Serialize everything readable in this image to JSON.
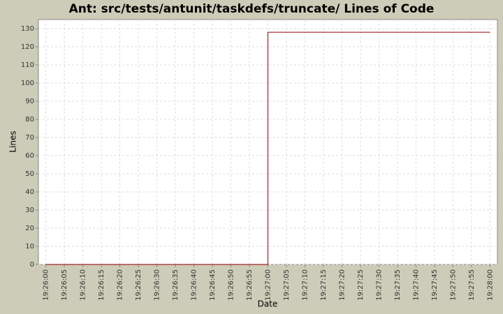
{
  "chart_data": {
    "type": "line",
    "title": "Ant: src/tests/antunit/taskdefs/truncate/ Lines of Code",
    "x_label": "Date",
    "y_label": "Lines",
    "x": [
      "19:26:00",
      "19:27:00",
      "19:27:00",
      "19:28:00"
    ],
    "values": [
      0,
      0,
      128,
      128
    ],
    "color": "#a02424",
    "xlim": [
      "19:25:58",
      "19:28:02"
    ],
    "xticks": [
      "19:26:00",
      "19:26:05",
      "19:26:10",
      "19:26:15",
      "19:26:20",
      "19:26:25",
      "19:26:30",
      "19:26:35",
      "19:26:40",
      "19:26:45",
      "19:26:50",
      "19:26:55",
      "19:27:00",
      "19:27:05",
      "19:27:10",
      "19:27:15",
      "19:27:20",
      "19:27:25",
      "19:27:30",
      "19:27:35",
      "19:27:40",
      "19:27:45",
      "19:27:50",
      "19:27:55",
      "19:28:00"
    ],
    "ylim": [
      0,
      135
    ],
    "yticks": [
      0,
      10,
      20,
      30,
      40,
      50,
      60,
      70,
      80,
      90,
      100,
      110,
      120,
      130
    ],
    "grid": true
  }
}
